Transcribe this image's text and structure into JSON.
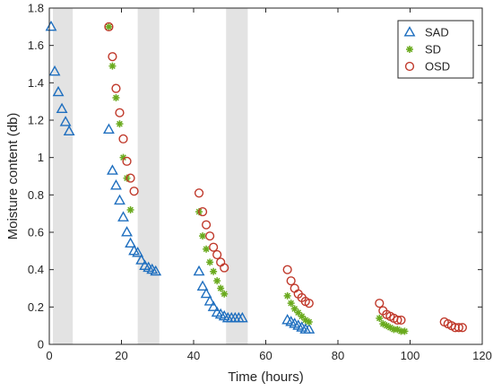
{
  "chart_data": {
    "type": "scatter",
    "xlabel": "Time (hours)",
    "ylabel": "Moisture content (db)",
    "xlim": [
      0,
      120
    ],
    "ylim": [
      0,
      1.8
    ],
    "xticks": [
      0,
      20,
      40,
      60,
      80,
      100,
      120
    ],
    "yticks": [
      0,
      0.2,
      0.4,
      0.6,
      0.8,
      1,
      1.2,
      1.4,
      1.6,
      1.8
    ],
    "xtick_labels": [
      "0",
      "20",
      "40",
      "60",
      "80",
      "100",
      "120"
    ],
    "ytick_labels": [
      "0",
      "0.2",
      "0.4",
      "0.6",
      "0.8",
      "1",
      "1.2",
      "1.4",
      "1.6",
      "1.8"
    ],
    "grid": false,
    "legend_position": "top-right",
    "shaded_intervals": [
      [
        1,
        6.5
      ],
      [
        24.5,
        30.5
      ],
      [
        49,
        55
      ]
    ],
    "shade_color": "#e3e3e3",
    "series": [
      {
        "name": "SAD",
        "marker": "triangle",
        "color": "#1f6fbf",
        "points": [
          [
            0.5,
            1.7
          ],
          [
            1.5,
            1.46
          ],
          [
            2.5,
            1.35
          ],
          [
            3.5,
            1.26
          ],
          [
            4.5,
            1.19
          ],
          [
            5.5,
            1.14
          ],
          [
            16.5,
            1.15
          ],
          [
            17.5,
            0.93
          ],
          [
            18.5,
            0.85
          ],
          [
            19.5,
            0.77
          ],
          [
            20.5,
            0.68
          ],
          [
            21.5,
            0.6
          ],
          [
            22.5,
            0.54
          ],
          [
            23.5,
            0.5
          ],
          [
            24.5,
            0.49
          ],
          [
            25.5,
            0.45
          ],
          [
            26.5,
            0.42
          ],
          [
            27.5,
            0.41
          ],
          [
            28.5,
            0.4
          ],
          [
            29.5,
            0.39
          ],
          [
            41.5,
            0.39
          ],
          [
            42.5,
            0.31
          ],
          [
            43.5,
            0.27
          ],
          [
            44.5,
            0.23
          ],
          [
            45.5,
            0.2
          ],
          [
            46.5,
            0.17
          ],
          [
            47.5,
            0.16
          ],
          [
            48.5,
            0.15
          ],
          [
            49.5,
            0.14
          ],
          [
            50.5,
            0.14
          ],
          [
            51.5,
            0.14
          ],
          [
            52.5,
            0.14
          ],
          [
            53.5,
            0.14
          ],
          [
            66,
            0.13
          ],
          [
            67,
            0.12
          ],
          [
            68,
            0.11
          ],
          [
            69,
            0.1
          ],
          [
            70,
            0.09
          ],
          [
            71,
            0.08
          ],
          [
            72,
            0.08
          ]
        ]
      },
      {
        "name": "SD",
        "marker": "star",
        "color": "#6aaa1e",
        "points": [
          [
            16.5,
            1.7
          ],
          [
            17.5,
            1.49
          ],
          [
            18.5,
            1.32
          ],
          [
            19.5,
            1.18
          ],
          [
            20.5,
            1.0
          ],
          [
            21.5,
            0.89
          ],
          [
            22.5,
            0.72
          ],
          [
            41.5,
            0.71
          ],
          [
            42.5,
            0.58
          ],
          [
            43.5,
            0.51
          ],
          [
            44.5,
            0.44
          ],
          [
            45.5,
            0.39
          ],
          [
            46.5,
            0.34
          ],
          [
            47.5,
            0.3
          ],
          [
            48.5,
            0.27
          ],
          [
            66,
            0.26
          ],
          [
            67,
            0.22
          ],
          [
            68,
            0.19
          ],
          [
            69,
            0.17
          ],
          [
            70,
            0.15
          ],
          [
            71,
            0.13
          ],
          [
            72,
            0.12
          ],
          [
            91.5,
            0.14
          ],
          [
            92.5,
            0.11
          ],
          [
            93.5,
            0.1
          ],
          [
            94.5,
            0.09
          ],
          [
            95.5,
            0.08
          ],
          [
            96.5,
            0.08
          ],
          [
            97.5,
            0.07
          ],
          [
            98.5,
            0.07
          ]
        ]
      },
      {
        "name": "OSD",
        "marker": "circle",
        "color": "#c0392b",
        "points": [
          [
            16.5,
            1.7
          ],
          [
            17.5,
            1.54
          ],
          [
            18.5,
            1.37
          ],
          [
            19.5,
            1.24
          ],
          [
            20.5,
            1.1
          ],
          [
            21.5,
            0.98
          ],
          [
            22.5,
            0.89
          ],
          [
            23.5,
            0.82
          ],
          [
            41.5,
            0.81
          ],
          [
            42.5,
            0.71
          ],
          [
            43.5,
            0.64
          ],
          [
            44.5,
            0.58
          ],
          [
            45.5,
            0.52
          ],
          [
            46.5,
            0.48
          ],
          [
            47.5,
            0.44
          ],
          [
            48.5,
            0.41
          ],
          [
            66,
            0.4
          ],
          [
            67,
            0.34
          ],
          [
            68,
            0.3
          ],
          [
            69,
            0.27
          ],
          [
            70,
            0.25
          ],
          [
            71,
            0.23
          ],
          [
            72,
            0.22
          ],
          [
            91.5,
            0.22
          ],
          [
            92.5,
            0.18
          ],
          [
            93.5,
            0.16
          ],
          [
            94.5,
            0.15
          ],
          [
            95.5,
            0.14
          ],
          [
            96.5,
            0.13
          ],
          [
            97.5,
            0.13
          ],
          [
            109.5,
            0.12
          ],
          [
            110.5,
            0.11
          ],
          [
            111.5,
            0.1
          ],
          [
            112.5,
            0.09
          ],
          [
            113.5,
            0.09
          ],
          [
            114.5,
            0.09
          ]
        ]
      }
    ]
  }
}
